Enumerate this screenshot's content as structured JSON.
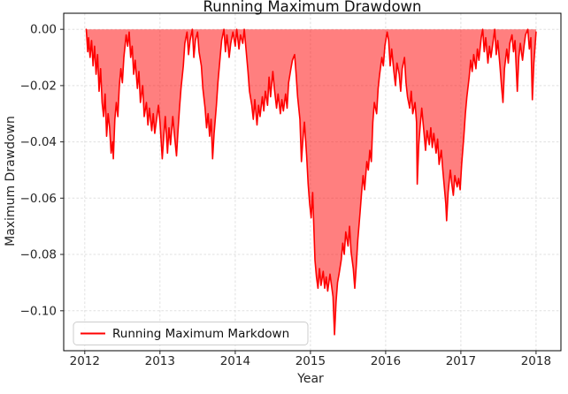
{
  "chart_data": {
    "type": "area",
    "title": "Running Maximum Drawdown",
    "xlabel": "Year",
    "ylabel": "Maximum Drawdown",
    "legend": [
      "Running Maximum Markdown"
    ],
    "legend_position": "lower left",
    "grid": true,
    "grid_style": "dashed",
    "grid_color": "#e0e0e0",
    "line_color": "#ff0000",
    "fill_color": "#ff0000",
    "fill_alpha": 0.5,
    "background_color": "#ffffff",
    "xlim": [
      2011.72,
      2018.33
    ],
    "ylim": [
      -0.1142,
      0.0057
    ],
    "xticks": [
      2012,
      2013,
      2014,
      2015,
      2016,
      2017,
      2018
    ],
    "xtick_labels": [
      "2012",
      "2013",
      "2014",
      "2015",
      "2016",
      "2017",
      "2018"
    ],
    "yticks": [
      0.0,
      -0.02,
      -0.04,
      -0.06,
      -0.08,
      -0.1
    ],
    "ytick_labels": [
      "0.00",
      "−0.02",
      "−0.04",
      "−0.06",
      "−0.08",
      "−0.10"
    ],
    "series": [
      {
        "name": "Running Maximum Markdown",
        "baseline": 0,
        "points": [
          [
            2012.02,
            0.0
          ],
          [
            2012.04,
            -0.008
          ],
          [
            2012.05,
            -0.003
          ],
          [
            2012.07,
            -0.01
          ],
          [
            2012.09,
            -0.004
          ],
          [
            2012.11,
            -0.013
          ],
          [
            2012.13,
            -0.006
          ],
          [
            2012.15,
            -0.016
          ],
          [
            2012.17,
            -0.009
          ],
          [
            2012.19,
            -0.022
          ],
          [
            2012.21,
            -0.014
          ],
          [
            2012.23,
            -0.026
          ],
          [
            2012.25,
            -0.031
          ],
          [
            2012.27,
            -0.023
          ],
          [
            2012.29,
            -0.038
          ],
          [
            2012.31,
            -0.03
          ],
          [
            2012.33,
            -0.035
          ],
          [
            2012.35,
            -0.044
          ],
          [
            2012.37,
            -0.04
          ],
          [
            2012.38,
            -0.046
          ],
          [
            2012.4,
            -0.032
          ],
          [
            2012.42,
            -0.026
          ],
          [
            2012.44,
            -0.031
          ],
          [
            2012.46,
            -0.02
          ],
          [
            2012.48,
            -0.014
          ],
          [
            2012.5,
            -0.019
          ],
          [
            2012.52,
            -0.01
          ],
          [
            2012.55,
            -0.002
          ],
          [
            2012.57,
            -0.006
          ],
          [
            2012.59,
            -0.001
          ],
          [
            2012.61,
            -0.01
          ],
          [
            2012.63,
            -0.006
          ],
          [
            2012.65,
            -0.016
          ],
          [
            2012.67,
            -0.011
          ],
          [
            2012.7,
            -0.021
          ],
          [
            2012.72,
            -0.015
          ],
          [
            2012.74,
            -0.026
          ],
          [
            2012.77,
            -0.02
          ],
          [
            2012.79,
            -0.031
          ],
          [
            2012.82,
            -0.026
          ],
          [
            2012.84,
            -0.034
          ],
          [
            2012.86,
            -0.028
          ],
          [
            2012.89,
            -0.036
          ],
          [
            2012.91,
            -0.03
          ],
          [
            2012.93,
            -0.037
          ],
          [
            2012.96,
            -0.031
          ],
          [
            2012.98,
            -0.027
          ],
          [
            2013.0,
            -0.033
          ],
          [
            2013.03,
            -0.046
          ],
          [
            2013.05,
            -0.038
          ],
          [
            2013.07,
            -0.031
          ],
          [
            2013.1,
            -0.044
          ],
          [
            2013.12,
            -0.035
          ],
          [
            2013.14,
            -0.041
          ],
          [
            2013.17,
            -0.031
          ],
          [
            2013.19,
            -0.037
          ],
          [
            2013.22,
            -0.045
          ],
          [
            2013.24,
            -0.036
          ],
          [
            2013.26,
            -0.028
          ],
          [
            2013.28,
            -0.021
          ],
          [
            2013.31,
            -0.013
          ],
          [
            2013.33,
            -0.005
          ],
          [
            2013.36,
            -0.001
          ],
          [
            2013.38,
            -0.009
          ],
          [
            2013.4,
            -0.004
          ],
          [
            2013.43,
            0.0
          ],
          [
            2013.45,
            -0.01
          ],
          [
            2013.47,
            -0.004
          ],
          [
            2013.5,
            -0.001
          ],
          [
            2013.52,
            -0.008
          ],
          [
            2013.55,
            -0.013
          ],
          [
            2013.57,
            -0.021
          ],
          [
            2013.6,
            -0.028
          ],
          [
            2013.62,
            -0.035
          ],
          [
            2013.64,
            -0.03
          ],
          [
            2013.66,
            -0.038
          ],
          [
            2013.68,
            -0.032
          ],
          [
            2013.7,
            -0.046
          ],
          [
            2013.72,
            -0.037
          ],
          [
            2013.75,
            -0.027
          ],
          [
            2013.77,
            -0.019
          ],
          [
            2013.8,
            -0.01
          ],
          [
            2013.82,
            -0.004
          ],
          [
            2013.85,
            0.0
          ],
          [
            2013.87,
            -0.008
          ],
          [
            2013.89,
            -0.002
          ],
          [
            2013.92,
            -0.01
          ],
          [
            2013.94,
            -0.005
          ],
          [
            2013.97,
            -0.001
          ],
          [
            2014.0,
            -0.006
          ],
          [
            2014.02,
            0.0
          ],
          [
            2014.05,
            -0.007
          ],
          [
            2014.07,
            -0.002
          ],
          [
            2014.1,
            -0.005
          ],
          [
            2014.12,
            0.0
          ],
          [
            2014.15,
            -0.009
          ],
          [
            2014.17,
            -0.015
          ],
          [
            2014.19,
            -0.022
          ],
          [
            2014.22,
            -0.027
          ],
          [
            2014.24,
            -0.032
          ],
          [
            2014.26,
            -0.025
          ],
          [
            2014.29,
            -0.034
          ],
          [
            2014.31,
            -0.027
          ],
          [
            2014.33,
            -0.031
          ],
          [
            2014.36,
            -0.024
          ],
          [
            2014.38,
            -0.029
          ],
          [
            2014.4,
            -0.022
          ],
          [
            2014.43,
            -0.027
          ],
          [
            2014.45,
            -0.017
          ],
          [
            2014.47,
            -0.024
          ],
          [
            2014.5,
            -0.015
          ],
          [
            2014.52,
            -0.021
          ],
          [
            2014.55,
            -0.028
          ],
          [
            2014.57,
            -0.023
          ],
          [
            2014.6,
            -0.03
          ],
          [
            2014.62,
            -0.025
          ],
          [
            2014.64,
            -0.029
          ],
          [
            2014.67,
            -0.023
          ],
          [
            2014.69,
            -0.028
          ],
          [
            2014.71,
            -0.019
          ],
          [
            2014.74,
            -0.014
          ],
          [
            2014.76,
            -0.011
          ],
          [
            2014.79,
            -0.009
          ],
          [
            2014.81,
            -0.016
          ],
          [
            2014.83,
            -0.024
          ],
          [
            2014.86,
            -0.032
          ],
          [
            2014.88,
            -0.047
          ],
          [
            2014.9,
            -0.039
          ],
          [
            2014.92,
            -0.033
          ],
          [
            2014.95,
            -0.045
          ],
          [
            2014.97,
            -0.055
          ],
          [
            2014.99,
            -0.062
          ],
          [
            2015.01,
            -0.067
          ],
          [
            2015.03,
            -0.058
          ],
          [
            2015.06,
            -0.082
          ],
          [
            2015.08,
            -0.088
          ],
          [
            2015.1,
            -0.092
          ],
          [
            2015.12,
            -0.085
          ],
          [
            2015.14,
            -0.091
          ],
          [
            2015.17,
            -0.086
          ],
          [
            2015.19,
            -0.092
          ],
          [
            2015.21,
            -0.088
          ],
          [
            2015.23,
            -0.093
          ],
          [
            2015.26,
            -0.087
          ],
          [
            2015.28,
            -0.091
          ],
          [
            2015.3,
            -0.095
          ],
          [
            2015.32,
            -0.1085
          ],
          [
            2015.34,
            -0.097
          ],
          [
            2015.36,
            -0.09
          ],
          [
            2015.38,
            -0.087
          ],
          [
            2015.41,
            -0.082
          ],
          [
            2015.43,
            -0.076
          ],
          [
            2015.45,
            -0.08
          ],
          [
            2015.47,
            -0.072
          ],
          [
            2015.5,
            -0.077
          ],
          [
            2015.52,
            -0.07
          ],
          [
            2015.54,
            -0.079
          ],
          [
            2015.57,
            -0.085
          ],
          [
            2015.59,
            -0.092
          ],
          [
            2015.61,
            -0.084
          ],
          [
            2015.63,
            -0.075
          ],
          [
            2015.66,
            -0.065
          ],
          [
            2015.68,
            -0.058
          ],
          [
            2015.7,
            -0.052
          ],
          [
            2015.72,
            -0.057
          ],
          [
            2015.75,
            -0.047
          ],
          [
            2015.77,
            -0.05
          ],
          [
            2015.79,
            -0.043
          ],
          [
            2015.81,
            -0.047
          ],
          [
            2015.83,
            -0.033
          ],
          [
            2015.85,
            -0.026
          ],
          [
            2015.88,
            -0.03
          ],
          [
            2015.9,
            -0.021
          ],
          [
            2015.92,
            -0.016
          ],
          [
            2015.95,
            -0.01
          ],
          [
            2015.97,
            -0.013
          ],
          [
            2015.99,
            -0.006
          ],
          [
            2016.02,
            -0.001
          ],
          [
            2016.04,
            -0.004
          ],
          [
            2016.06,
            -0.013
          ],
          [
            2016.08,
            -0.007
          ],
          [
            2016.11,
            -0.015
          ],
          [
            2016.13,
            -0.02
          ],
          [
            2016.15,
            -0.012
          ],
          [
            2016.18,
            -0.016
          ],
          [
            2016.2,
            -0.022
          ],
          [
            2016.22,
            -0.014
          ],
          [
            2016.25,
            -0.01
          ],
          [
            2016.27,
            -0.019
          ],
          [
            2016.29,
            -0.024
          ],
          [
            2016.32,
            -0.028
          ],
          [
            2016.34,
            -0.022
          ],
          [
            2016.36,
            -0.03
          ],
          [
            2016.39,
            -0.026
          ],
          [
            2016.41,
            -0.033
          ],
          [
            2016.42,
            -0.055
          ],
          [
            2016.44,
            -0.041
          ],
          [
            2016.46,
            -0.034
          ],
          [
            2016.48,
            -0.028
          ],
          [
            2016.51,
            -0.037
          ],
          [
            2016.53,
            -0.043
          ],
          [
            2016.55,
            -0.036
          ],
          [
            2016.58,
            -0.041
          ],
          [
            2016.6,
            -0.035
          ],
          [
            2016.62,
            -0.042
          ],
          [
            2016.64,
            -0.037
          ],
          [
            2016.67,
            -0.044
          ],
          [
            2016.69,
            -0.039
          ],
          [
            2016.71,
            -0.048
          ],
          [
            2016.74,
            -0.043
          ],
          [
            2016.76,
            -0.05
          ],
          [
            2016.78,
            -0.056
          ],
          [
            2016.8,
            -0.062
          ],
          [
            2016.81,
            -0.068
          ],
          [
            2016.83,
            -0.058
          ],
          [
            2016.86,
            -0.05
          ],
          [
            2016.88,
            -0.055
          ],
          [
            2016.9,
            -0.059
          ],
          [
            2016.92,
            -0.052
          ],
          [
            2016.95,
            -0.056
          ],
          [
            2016.97,
            -0.053
          ],
          [
            2016.99,
            -0.057
          ],
          [
            2017.01,
            -0.048
          ],
          [
            2017.04,
            -0.038
          ],
          [
            2017.06,
            -0.03
          ],
          [
            2017.08,
            -0.024
          ],
          [
            2017.11,
            -0.017
          ],
          [
            2017.13,
            -0.011
          ],
          [
            2017.15,
            -0.015
          ],
          [
            2017.17,
            -0.009
          ],
          [
            2017.2,
            -0.014
          ],
          [
            2017.22,
            -0.007
          ],
          [
            2017.24,
            -0.011
          ],
          [
            2017.27,
            -0.003
          ],
          [
            2017.29,
            0.0
          ],
          [
            2017.31,
            -0.008
          ],
          [
            2017.33,
            -0.003
          ],
          [
            2017.36,
            -0.012
          ],
          [
            2017.38,
            -0.006
          ],
          [
            2017.4,
            -0.01
          ],
          [
            2017.43,
            -0.004
          ],
          [
            2017.45,
            0.0
          ],
          [
            2017.47,
            -0.009
          ],
          [
            2017.49,
            -0.004
          ],
          [
            2017.52,
            -0.013
          ],
          [
            2017.54,
            -0.02
          ],
          [
            2017.56,
            -0.026
          ],
          [
            2017.58,
            -0.014
          ],
          [
            2017.61,
            -0.007
          ],
          [
            2017.63,
            -0.012
          ],
          [
            2017.65,
            -0.005
          ],
          [
            2017.68,
            -0.002
          ],
          [
            2017.7,
            -0.008
          ],
          [
            2017.72,
            -0.004
          ],
          [
            2017.75,
            -0.022
          ],
          [
            2017.77,
            -0.01
          ],
          [
            2017.79,
            -0.005
          ],
          [
            2017.82,
            -0.011
          ],
          [
            2017.84,
            -0.006
          ],
          [
            2017.86,
            -0.002
          ],
          [
            2017.89,
            0.0
          ],
          [
            2017.91,
            -0.007
          ],
          [
            2017.93,
            -0.003
          ],
          [
            2017.95,
            -0.025
          ],
          [
            2017.97,
            -0.012
          ],
          [
            2018.0,
            -0.001
          ]
        ]
      }
    ]
  }
}
